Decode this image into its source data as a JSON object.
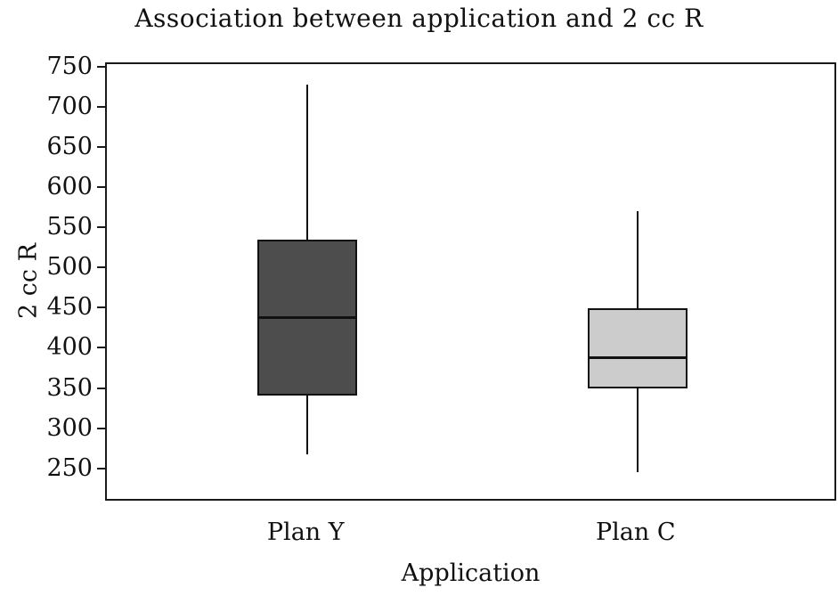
{
  "title": "Association between application and 2 cc R",
  "chart_data": {
    "type": "boxplot",
    "title": "Association between application and 2 cc R",
    "xlabel": "Application",
    "ylabel": "2 cc R",
    "ylim": [
      210,
      755
    ],
    "yticks": [
      750,
      700,
      650,
      600,
      550,
      500,
      450,
      400,
      350,
      300,
      250
    ],
    "grid": false,
    "legend": "none",
    "categories": [
      "Plan Y",
      "Plan C"
    ],
    "series": [
      {
        "name": "Plan Y",
        "whisker_low": 270,
        "q1": 343,
        "median": 440,
        "q3": 537,
        "whisker_high": 730,
        "fill": "#4d4d4d"
      },
      {
        "name": "Plan C",
        "whisker_low": 248,
        "q1": 352,
        "median": 390,
        "q3": 452,
        "whisker_high": 572,
        "fill": "#cccccc"
      }
    ],
    "colors": {
      "box_border": "#111111",
      "median": "#111111",
      "whisker": "#111111",
      "axis": "#1a1a1a",
      "background": "#ffffff"
    }
  }
}
